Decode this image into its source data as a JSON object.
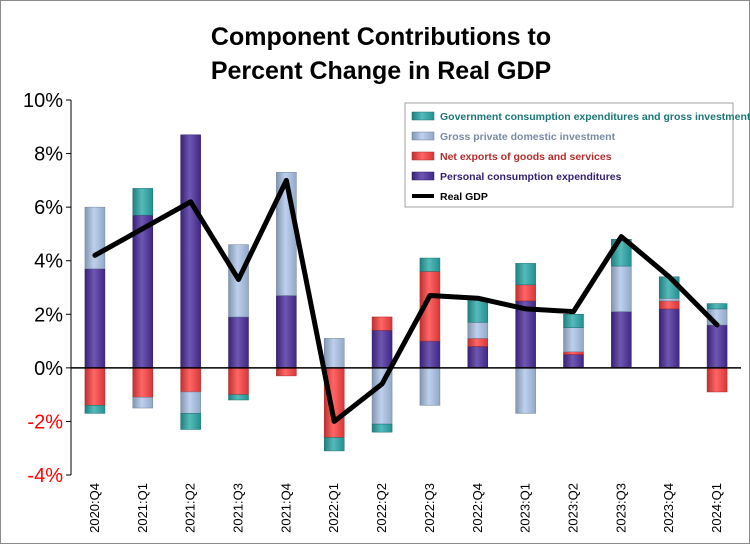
{
  "chart_data": {
    "type": "bar",
    "stacked": true,
    "title": [
      "Component Contributions to",
      "Percent Change in Real GDP"
    ],
    "xlabel": "",
    "ylabel": "",
    "ylim": [
      -4,
      10
    ],
    "yticks": [
      -4,
      -2,
      0,
      2,
      4,
      6,
      8,
      10
    ],
    "ytick_labels": [
      "-4%",
      "-2%",
      "0%",
      "2%",
      "4%",
      "6%",
      "8%",
      "10%"
    ],
    "negative_tick_color": "#ff0000",
    "grid": false,
    "legend_position": "top-right",
    "categories": [
      "2020:Q4",
      "2021:Q1",
      "2021:Q2",
      "2021:Q3",
      "2021:Q4",
      "2022:Q1",
      "2022:Q2",
      "2022:Q3",
      "2022:Q4",
      "2023:Q1",
      "2023:Q2",
      "2023:Q3",
      "2023:Q4",
      "2024:Q1"
    ],
    "stack_order": [
      "Personal consumption expenditures",
      "Net exports of goods and services",
      "Gross private domestic investment",
      "Government consumption expenditures and gross investment"
    ],
    "series": [
      {
        "name": "Government consumption expenditures and gross investment",
        "color": "#2aa9a9",
        "values": [
          -0.3,
          1.0,
          -0.6,
          -0.2,
          0.0,
          -0.5,
          -0.3,
          0.5,
          0.9,
          0.8,
          0.5,
          1.0,
          0.8,
          0.2
        ]
      },
      {
        "name": "Gross private domestic investment",
        "color": "#adc6ea",
        "values": [
          2.3,
          -0.4,
          -0.8,
          2.7,
          4.6,
          1.1,
          -2.1,
          -1.4,
          0.6,
          -1.7,
          0.9,
          1.7,
          0.1,
          0.6
        ]
      },
      {
        "name": "Net exports of goods and services",
        "color": "#ff4040",
        "values": [
          -1.4,
          -1.1,
          -0.9,
          -1.0,
          -0.3,
          -2.6,
          0.5,
          2.6,
          0.3,
          0.6,
          0.1,
          0.0,
          0.3,
          -0.9
        ]
      },
      {
        "name": "Personal consumption expenditures",
        "color": "#4b2d9e",
        "values": [
          3.7,
          5.7,
          8.7,
          1.9,
          2.7,
          0.0,
          1.4,
          1.0,
          0.8,
          2.5,
          0.5,
          2.1,
          2.2,
          1.6
        ]
      }
    ],
    "line": {
      "name": "Real GDP",
      "color": "#000000",
      "values": [
        4.2,
        5.2,
        6.2,
        3.3,
        7.0,
        -2.0,
        -0.6,
        2.7,
        2.6,
        2.2,
        2.1,
        4.9,
        3.4,
        1.6
      ]
    }
  }
}
